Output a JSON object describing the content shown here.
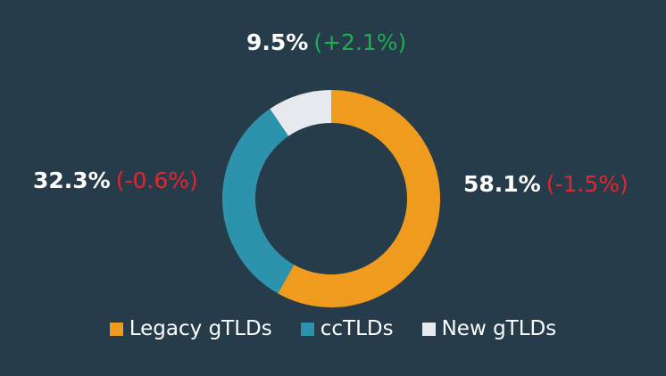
{
  "chart_data": {
    "type": "pie",
    "donut": true,
    "legend_position": "bottom",
    "categories": [
      "Legacy gTLDs",
      "ccTLDs",
      "New gTLDs"
    ],
    "values": [
      58.1,
      32.3,
      9.5
    ],
    "value_labels": [
      "58.1%",
      "32.3%",
      "9.5%"
    ],
    "changes": [
      "(-1.5%)",
      "(-0.6%)",
      "(+2.1%)"
    ],
    "colors": [
      "#ef9c1e",
      "#2d93ac",
      "#e6eaee"
    ],
    "change_colors": {
      "negative": "#e3262d",
      "positive": "#1fae4f"
    },
    "background": "#263c4a"
  }
}
